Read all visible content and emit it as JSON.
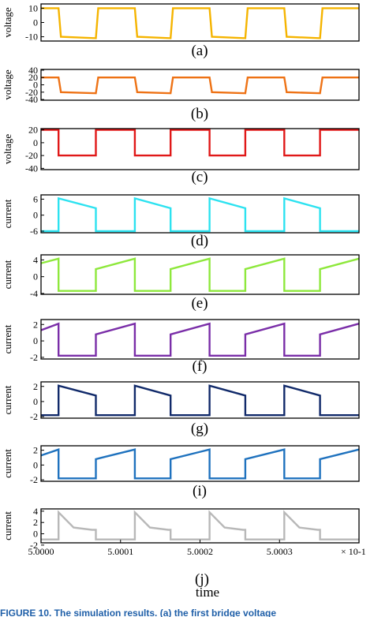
{
  "chart_data": [
    {
      "type": "line",
      "panel_label": "(a)",
      "ylabel": "voltage",
      "ylim": [
        -13,
        13
      ],
      "yticks": [
        10,
        0,
        -10
      ],
      "color": "#f5b400",
      "x": [
        5.0,
        5.0000022,
        5.0000025,
        5.0000069,
        5.0000072,
        5.0000118,
        5.0000121,
        5.0000163,
        5.0000166,
        5.0000212,
        5.0000215,
        5.0000257,
        5.000026,
        5.0000306,
        5.0000309,
        5.0000351,
        5.0000354,
        5.00004
      ],
      "y": [
        10,
        10,
        -10,
        -11,
        10,
        10,
        -10,
        -11,
        10,
        10,
        -10,
        -11,
        10,
        10,
        -10,
        -11,
        10,
        10
      ]
    },
    {
      "type": "line",
      "panel_label": "(b)",
      "ylabel": "voltage",
      "ylim": [
        -42,
        42
      ],
      "yticks": [
        40,
        20,
        0,
        -20,
        -40
      ],
      "color": "#ee7215",
      "x": [
        5.0,
        5.0000022,
        5.0000025,
        5.0000069,
        5.0000072,
        5.0000118,
        5.0000121,
        5.0000163,
        5.0000166,
        5.0000212,
        5.0000215,
        5.0000257,
        5.000026,
        5.0000306,
        5.0000309,
        5.0000351,
        5.0000354,
        5.00004
      ],
      "y": [
        20,
        20,
        -20,
        -23,
        20,
        20,
        -20,
        -23,
        20,
        20,
        -20,
        -23,
        20,
        20,
        -20,
        -23,
        20,
        20
      ]
    },
    {
      "type": "line",
      "panel_label": "(c)",
      "ylabel": "voltage",
      "ylim": [
        -42,
        22
      ],
      "yticks": [
        20,
        0,
        -20,
        -40
      ],
      "color": "#e01818",
      "x": [
        5.0,
        5.0000022,
        5.0000022,
        5.0000069,
        5.0000069,
        5.0000118,
        5.0000118,
        5.0000163,
        5.0000163,
        5.0000212,
        5.0000212,
        5.0000257,
        5.0000257,
        5.0000306,
        5.0000306,
        5.0000351,
        5.0000351,
        5.00004
      ],
      "y": [
        20,
        20,
        -20,
        -20,
        20,
        20,
        -20,
        -20,
        20,
        20,
        -20,
        -20,
        20,
        20,
        -20,
        -20,
        20,
        20
      ]
    },
    {
      "type": "line",
      "panel_label": "(d)",
      "ylabel": "current",
      "ylim": [
        -6.6,
        7.6
      ],
      "yticks": [
        6,
        0,
        -6
      ],
      "color": "#2ce2f0",
      "x": [
        5.0,
        5.0000022,
        5.0000022,
        5.0000069,
        5.0000069,
        5.0000118,
        5.0000118,
        5.0000163,
        5.0000163,
        5.0000212,
        5.0000212,
        5.0000257,
        5.0000257,
        5.0000306,
        5.0000306,
        5.0000351,
        5.0000351,
        5.00004
      ],
      "y": [
        -6,
        -6,
        6.3,
        2.6,
        -6,
        -6,
        6.3,
        2.6,
        -6,
        -6,
        6.3,
        2.6,
        -6,
        -6,
        6.3,
        2.6,
        -6,
        -6
      ]
    },
    {
      "type": "line",
      "panel_label": "(e)",
      "ylabel": "current",
      "ylim": [
        -4.2,
        5.2
      ],
      "yticks": [
        4,
        0,
        -4
      ],
      "color": "#8ee83c",
      "x": [
        5.0,
        5.0000022,
        5.0000022,
        5.0000069,
        5.0000069,
        5.0000118,
        5.0000118,
        5.0000163,
        5.0000163,
        5.0000212,
        5.0000212,
        5.0000257,
        5.0000257,
        5.0000306,
        5.0000306,
        5.0000351,
        5.0000351,
        5.00004
      ],
      "y": [
        3.2,
        4.3,
        -3.4,
        -3.4,
        1.8,
        4.3,
        -3.4,
        -3.4,
        1.8,
        4.3,
        -3.4,
        -3.4,
        1.8,
        4.3,
        -3.4,
        -3.4,
        1.8,
        4.3
      ]
    },
    {
      "type": "line",
      "panel_label": "(f)",
      "ylabel": "current",
      "ylim": [
        -2.2,
        2.6
      ],
      "yticks": [
        2,
        0,
        -2
      ],
      "color": "#7a2ea8",
      "x": [
        5.0,
        5.0000022,
        5.0000022,
        5.0000069,
        5.0000069,
        5.0000118,
        5.0000118,
        5.0000163,
        5.0000163,
        5.0000212,
        5.0000212,
        5.0000257,
        5.0000257,
        5.0000306,
        5.0000306,
        5.0000351,
        5.0000351,
        5.00004
      ],
      "y": [
        1.3,
        2.1,
        -1.8,
        -1.8,
        0.8,
        2.1,
        -1.8,
        -1.8,
        0.8,
        2.1,
        -1.8,
        -1.8,
        0.8,
        2.1,
        -1.8,
        -1.8,
        0.8,
        2.1
      ]
    },
    {
      "type": "line",
      "panel_label": "(g)",
      "ylabel": "current",
      "ylim": [
        -2.2,
        2.6
      ],
      "yticks": [
        2,
        0,
        -2
      ],
      "color": "#112a6a",
      "x": [
        5.0,
        5.0000022,
        5.0000022,
        5.0000069,
        5.0000069,
        5.0000118,
        5.0000118,
        5.0000163,
        5.0000163,
        5.0000212,
        5.0000212,
        5.0000257,
        5.0000257,
        5.0000306,
        5.0000306,
        5.0000351,
        5.0000351,
        5.00004
      ],
      "y": [
        -1.8,
        -1.8,
        2.1,
        0.8,
        -1.8,
        -1.8,
        2.1,
        0.8,
        -1.8,
        -1.8,
        2.1,
        0.8,
        -1.8,
        -1.8,
        2.1,
        0.8,
        -1.8,
        -1.8
      ]
    },
    {
      "type": "line",
      "panel_label": "(i)",
      "ylabel": "current",
      "ylim": [
        -2.2,
        2.6
      ],
      "yticks": [
        2,
        0,
        -2
      ],
      "color": "#1f72be",
      "x": [
        5.0,
        5.0000022,
        5.0000022,
        5.0000069,
        5.0000069,
        5.0000118,
        5.0000118,
        5.0000163,
        5.0000163,
        5.0000212,
        5.0000212,
        5.0000257,
        5.0000257,
        5.0000306,
        5.0000306,
        5.0000351,
        5.0000351,
        5.00004
      ],
      "y": [
        1.3,
        2.1,
        -1.8,
        -1.8,
        0.8,
        2.1,
        -1.8,
        -1.8,
        0.8,
        2.1,
        -1.8,
        -1.8,
        0.8,
        2.1,
        -1.8,
        -1.8,
        0.8,
        2.1
      ]
    },
    {
      "type": "line",
      "panel_label": "(j)",
      "ylabel": "current",
      "ylim": [
        -1.6,
        4.4
      ],
      "yticks": [
        4,
        2,
        0,
        -2
      ],
      "color": "#b8b8b8",
      "x": [
        5.0,
        5.0000022,
        5.0000022,
        5.0000041,
        5.0000064,
        5.0000069,
        5.0000069,
        5.0000118,
        5.0000118,
        5.0000137,
        5.000016,
        5.0000163,
        5.0000163,
        5.0000212,
        5.0000212,
        5.0000231,
        5.0000254,
        5.0000257,
        5.0000257,
        5.0000306,
        5.0000306,
        5.0000325,
        5.0000348,
        5.0000351,
        5.0000351,
        5.00004
      ],
      "y": [
        -1,
        -1,
        3.8,
        1.1,
        0.7,
        0.7,
        -1,
        -1,
        3.8,
        1.1,
        0.7,
        0.7,
        -1,
        -1,
        3.8,
        1.1,
        0.7,
        0.7,
        -1,
        -1,
        3.8,
        1.1,
        0.7,
        0.7,
        -1,
        -1
      ],
      "xtick_labels": [
        "5.0000",
        "5.0001",
        "5.0002",
        "5.0003"
      ],
      "xticks": [
        5.0,
        5.00001,
        5.00002,
        5.00003
      ],
      "x_multiplier_label": "× 10-1",
      "xlabel": "time"
    }
  ],
  "shared_x": {
    "xlim": [
      5.0,
      5.00004
    ]
  },
  "caption": "FIGURE 10. The simulation results. (a) the first bridge voltage"
}
